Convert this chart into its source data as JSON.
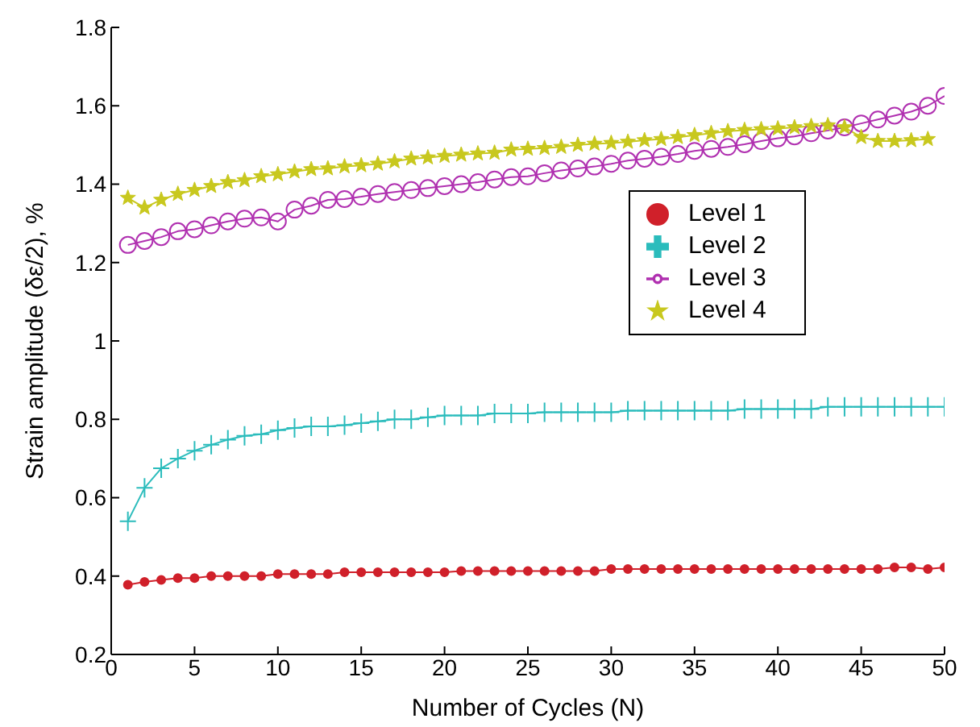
{
  "chart_data": {
    "type": "line",
    "xlabel": "Number of Cycles (N)",
    "ylabel": "Strain amplitude (δε/2), %",
    "x": [
      1,
      2,
      3,
      4,
      5,
      6,
      7,
      8,
      9,
      10,
      11,
      12,
      13,
      14,
      15,
      16,
      17,
      18,
      19,
      20,
      21,
      22,
      23,
      24,
      25,
      26,
      27,
      28,
      29,
      30,
      31,
      32,
      33,
      34,
      35,
      36,
      37,
      38,
      39,
      40,
      41,
      42,
      43,
      44,
      45,
      46,
      47,
      48,
      49,
      50
    ],
    "xlim": [
      0,
      50
    ],
    "xticks": [
      0,
      5,
      10,
      15,
      20,
      25,
      30,
      35,
      40,
      45,
      50
    ],
    "ylim": [
      0.2,
      1.8
    ],
    "yticks": [
      0.2,
      0.4,
      0.6,
      0.8,
      1,
      1.2,
      1.4,
      1.6,
      1.8
    ],
    "grid": false,
    "legend": "right",
    "line_style": "solid",
    "series": [
      {
        "name": "Level 1",
        "color": "#d0202a",
        "marker": "circle",
        "values": [
          0.378,
          0.385,
          0.39,
          0.395,
          0.395,
          0.4,
          0.4,
          0.4,
          0.4,
          0.405,
          0.405,
          0.405,
          0.405,
          0.41,
          0.41,
          0.41,
          0.41,
          0.41,
          0.41,
          0.41,
          0.413,
          0.413,
          0.413,
          0.413,
          0.413,
          0.413,
          0.413,
          0.413,
          0.413,
          0.418,
          0.418,
          0.418,
          0.418,
          0.418,
          0.418,
          0.418,
          0.418,
          0.418,
          0.418,
          0.418,
          0.418,
          0.418,
          0.418,
          0.418,
          0.418,
          0.418,
          0.422,
          0.422,
          0.418,
          0.422
        ]
      },
      {
        "name": "Level 2",
        "color": "#2bbcbc",
        "marker": "cross",
        "values": [
          0.54,
          0.625,
          0.675,
          0.7,
          0.72,
          0.735,
          0.748,
          0.758,
          0.762,
          0.772,
          0.778,
          0.782,
          0.782,
          0.785,
          0.79,
          0.795,
          0.8,
          0.8,
          0.805,
          0.81,
          0.81,
          0.81,
          0.815,
          0.815,
          0.815,
          0.818,
          0.818,
          0.818,
          0.818,
          0.818,
          0.822,
          0.822,
          0.822,
          0.822,
          0.822,
          0.822,
          0.822,
          0.826,
          0.826,
          0.826,
          0.826,
          0.826,
          0.832,
          0.832,
          0.832,
          0.832,
          0.832,
          0.832,
          0.832,
          0.832
        ]
      },
      {
        "name": "Level 3",
        "color": "#b030b0",
        "marker": "circle_open",
        "values": [
          1.245,
          1.255,
          1.265,
          1.28,
          1.285,
          1.295,
          1.305,
          1.312,
          1.315,
          1.305,
          1.335,
          1.345,
          1.36,
          1.362,
          1.368,
          1.375,
          1.38,
          1.385,
          1.39,
          1.395,
          1.4,
          1.405,
          1.412,
          1.418,
          1.42,
          1.428,
          1.435,
          1.44,
          1.445,
          1.452,
          1.46,
          1.465,
          1.47,
          1.477,
          1.485,
          1.49,
          1.495,
          1.502,
          1.51,
          1.517,
          1.522,
          1.53,
          1.537,
          1.545,
          1.555,
          1.565,
          1.575,
          1.585,
          1.6,
          1.625
        ]
      },
      {
        "name": "Level 4",
        "color": "#c8c81e",
        "marker": "star",
        "values": [
          1.365,
          1.34,
          1.36,
          1.375,
          1.385,
          1.395,
          1.405,
          1.41,
          1.42,
          1.425,
          1.432,
          1.438,
          1.44,
          1.445,
          1.448,
          1.452,
          1.458,
          1.465,
          1.468,
          1.472,
          1.475,
          1.478,
          1.48,
          1.488,
          1.49,
          1.492,
          1.495,
          1.5,
          1.503,
          1.505,
          1.508,
          1.512,
          1.515,
          1.52,
          1.525,
          1.53,
          1.535,
          1.538,
          1.54,
          1.542,
          1.545,
          1.548,
          1.55,
          1.545,
          1.52,
          1.51,
          1.51,
          1.512,
          1.515,
          null
        ]
      }
    ]
  }
}
